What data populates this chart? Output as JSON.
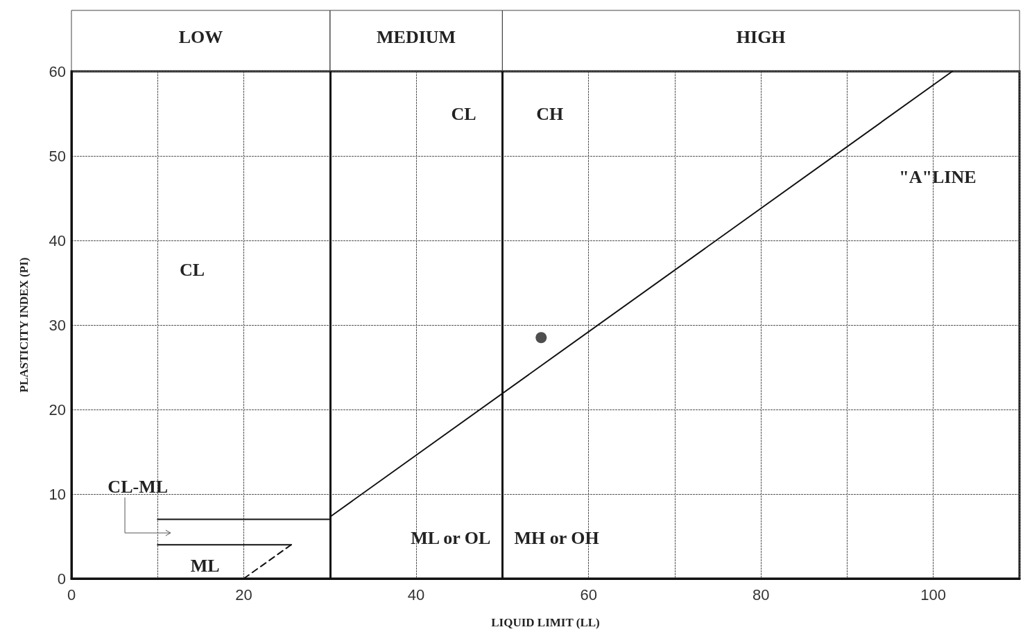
{
  "chart_data": {
    "type": "line",
    "xlabel": "LIQUID LIMIT (LL)",
    "ylabel": "PLASTICITY INDEX (PI)",
    "xlim": [
      0,
      110
    ],
    "ylim": [
      0,
      60
    ],
    "xticks": [
      0,
      {
        "value": 10,
        "label": null
      },
      20,
      {
        "value": 30,
        "label": null
      },
      40,
      {
        "value": 50,
        "label": null
      },
      60,
      {
        "value": 70,
        "label": null
      },
      80,
      {
        "value": 90,
        "label": null
      },
      100,
      {
        "value": 110,
        "label": null
      }
    ],
    "yticks": [
      0,
      10,
      20,
      30,
      40,
      50,
      60
    ],
    "grid": true,
    "legend": false,
    "series": [
      {
        "color": "#111111",
        "x": [
          30,
          102.2
        ],
        "values": [
          7.3,
          60
        ],
        "line_style": "solid",
        "marker": "none"
      },
      {
        "color": "#111111",
        "x": [
          20,
          25.5
        ],
        "values": [
          0,
          4
        ],
        "line_style": "dashed",
        "marker": "none"
      },
      {
        "color": "#111111",
        "x": [
          10,
          30
        ],
        "values": [
          7,
          7
        ],
        "line_style": "solid",
        "marker": "none"
      },
      {
        "color": "#111111",
        "x": [
          10,
          25.5
        ],
        "values": [
          4,
          4
        ],
        "line_style": "solid",
        "marker": "none"
      },
      {
        "type": "scatter",
        "color": "#222222",
        "x": [
          54.5
        ],
        "values": [
          28.5
        ],
        "marker": "circle"
      }
    ],
    "ref_lines": [
      {
        "axis": "x",
        "value": 30
      },
      {
        "axis": "x",
        "value": 50
      }
    ],
    "annotations": [
      "LOW",
      "MEDIUM",
      "HIGH",
      "CL",
      "CL",
      "CH",
      "\"A\"LINE",
      "CL-ML",
      "ML",
      "ML or OL",
      "MH or OH"
    ]
  }
}
